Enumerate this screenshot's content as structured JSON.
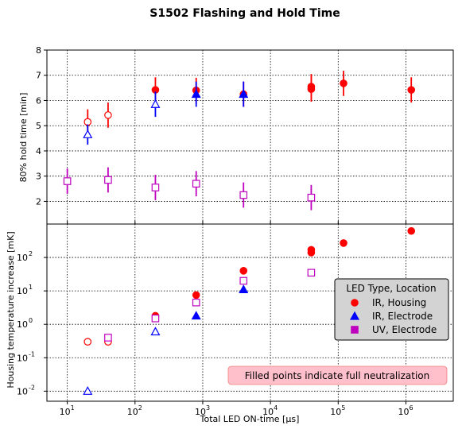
{
  "title": "S1502 Flashing and Hold Time",
  "colors": {
    "ir": "#ff0000",
    "ir_electrode": "#0000ff",
    "uv": "#bf00bf",
    "grid": "#000000",
    "legend_bg": "#d3d3d3",
    "note_bg": "#ffc0cb"
  },
  "legend": {
    "title": "LED Type, Location",
    "entries": [
      {
        "label": "IR, Housing",
        "marker": "circle",
        "color": "#ff0000"
      },
      {
        "label": "IR, Electrode",
        "marker": "triangle",
        "color": "#0000ff"
      },
      {
        "label": "UV, Electrode",
        "marker": "square",
        "color": "#bf00bf"
      }
    ]
  },
  "note": "Filled points indicate full neutralization",
  "chart_data": [
    {
      "type": "scatter",
      "title": "S1502 Flashing and Hold Time",
      "xlabel": "",
      "ylabel": "80% hold time [min]",
      "xscale": "log",
      "xlim": [
        5,
        5000000
      ],
      "ylim": [
        1.1,
        8
      ],
      "yticks": [
        2,
        3,
        4,
        5,
        6,
        7,
        8
      ],
      "grid": true,
      "series": [
        {
          "name": "IR, Housing",
          "marker": "circle",
          "color": "#ff0000",
          "points": [
            {
              "x": 20,
              "y": 5.15,
              "err": 0.5,
              "filled": false
            },
            {
              "x": 40,
              "y": 5.42,
              "err": 0.5,
              "filled": false
            },
            {
              "x": 200,
              "y": 6.42,
              "err": 0.5,
              "filled": true
            },
            {
              "x": 800,
              "y": 6.4,
              "err": 0.5,
              "filled": true
            },
            {
              "x": 4000,
              "y": 6.25,
              "err": 0.5,
              "filled": true
            },
            {
              "x": 40000,
              "y": 6.55,
              "err": 0.5,
              "filled": true
            },
            {
              "x": 40000,
              "y": 6.45,
              "err": 0.5,
              "filled": true
            },
            {
              "x": 120000,
              "y": 6.68,
              "err": 0.5,
              "filled": true
            },
            {
              "x": 1200000,
              "y": 6.42,
              "err": 0.5,
              "filled": true
            }
          ]
        },
        {
          "name": "IR, Electrode",
          "marker": "triangle",
          "color": "#0000ff",
          "points": [
            {
              "x": 20,
              "y": 4.65,
              "err": 0.4,
              "filled": false
            },
            {
              "x": 200,
              "y": 5.85,
              "err": 0.5,
              "filled": false
            },
            {
              "x": 800,
              "y": 6.25,
              "err": 0.5,
              "filled": true
            },
            {
              "x": 4000,
              "y": 6.25,
              "err": 0.5,
              "filled": true
            }
          ]
        },
        {
          "name": "UV, Electrode",
          "marker": "square",
          "color": "#bf00bf",
          "points": [
            {
              "x": 10,
              "y": 2.8,
              "err": 0.5,
              "filled": false
            },
            {
              "x": 40,
              "y": 2.85,
              "err": 0.5,
              "filled": false
            },
            {
              "x": 200,
              "y": 2.55,
              "err": 0.5,
              "filled": false
            },
            {
              "x": 800,
              "y": 2.7,
              "err": 0.5,
              "filled": false
            },
            {
              "x": 4000,
              "y": 2.25,
              "err": 0.5,
              "filled": false
            },
            {
              "x": 40000,
              "y": 2.15,
              "err": 0.5,
              "filled": false
            }
          ]
        }
      ]
    },
    {
      "type": "scatter",
      "title": "",
      "xlabel": "Total LED ON-time [μs]",
      "ylabel": "Housing temperature increase [mK]",
      "xscale": "log",
      "yscale": "log",
      "xlim": [
        5,
        5000000
      ],
      "ylim": [
        0.005,
        1000
      ],
      "grid": true,
      "series": [
        {
          "name": "IR, Housing",
          "marker": "circle",
          "color": "#ff0000",
          "points": [
            {
              "x": 20,
              "y": 0.3,
              "filled": false
            },
            {
              "x": 40,
              "y": 0.3,
              "filled": false
            },
            {
              "x": 200,
              "y": 1.8,
              "filled": true
            },
            {
              "x": 800,
              "y": 7.5,
              "filled": true
            },
            {
              "x": 4000,
              "y": 40,
              "filled": true
            },
            {
              "x": 40000,
              "y": 170,
              "filled": true
            },
            {
              "x": 40000,
              "y": 140,
              "filled": true
            },
            {
              "x": 120000,
              "y": 270,
              "filled": true
            },
            {
              "x": 1200000,
              "y": 620,
              "filled": true
            }
          ]
        },
        {
          "name": "IR, Electrode",
          "marker": "triangle",
          "color": "#0000ff",
          "points": [
            {
              "x": 20,
              "y": 0.01,
              "filled": false
            },
            {
              "x": 200,
              "y": 0.6,
              "filled": false
            },
            {
              "x": 800,
              "y": 1.8,
              "filled": true
            },
            {
              "x": 4000,
              "y": 11,
              "filled": true
            }
          ]
        },
        {
          "name": "UV, Electrode",
          "marker": "square",
          "color": "#bf00bf",
          "points": [
            {
              "x": 40,
              "y": 0.4,
              "filled": false
            },
            {
              "x": 200,
              "y": 1.5,
              "filled": false
            },
            {
              "x": 800,
              "y": 4.5,
              "filled": false
            },
            {
              "x": 4000,
              "y": 20,
              "filled": false
            },
            {
              "x": 40000,
              "y": 35,
              "filled": false
            }
          ]
        }
      ]
    }
  ]
}
